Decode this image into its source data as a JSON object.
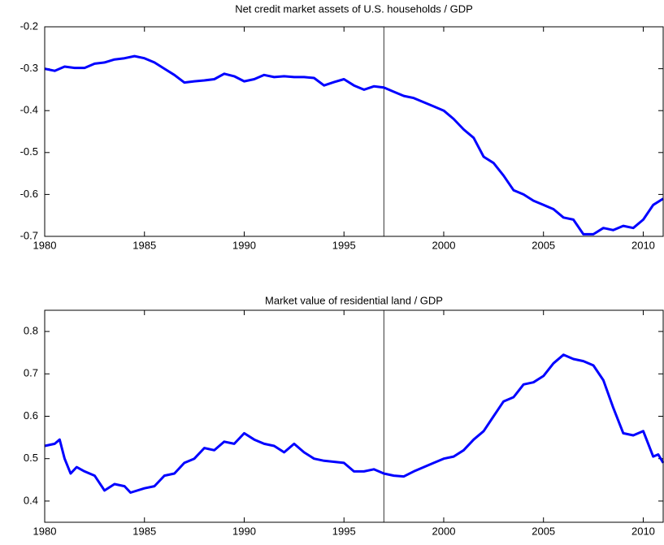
{
  "chart_data": [
    {
      "type": "line",
      "title": "Net credit market assets of U.S. households / GDP",
      "x": [
        1980,
        1980.5,
        1981,
        1981.5,
        1982,
        1982.5,
        1983,
        1983.5,
        1984,
        1984.5,
        1985,
        1985.5,
        1986,
        1986.5,
        1987,
        1987.5,
        1988,
        1988.5,
        1989,
        1989.5,
        1990,
        1990.5,
        1991,
        1991.5,
        1992,
        1992.5,
        1993,
        1993.5,
        1994,
        1994.5,
        1995,
        1995.5,
        1996,
        1996.5,
        1997,
        1997.5,
        1998,
        1998.5,
        1999,
        1999.5,
        2000,
        2000.5,
        2001,
        2001.5,
        2002,
        2002.5,
        2003,
        2003.5,
        2004,
        2004.5,
        2005,
        2005.5,
        2006,
        2006.5,
        2007,
        2007.5,
        2008,
        2008.5,
        2009,
        2009.5,
        2010,
        2010.5,
        2011
      ],
      "series": [
        {
          "name": "Net credit market assets",
          "color": "#0000ff",
          "values": [
            -0.3,
            -0.305,
            -0.295,
            -0.298,
            -0.298,
            -0.288,
            -0.285,
            -0.278,
            -0.275,
            -0.27,
            -0.275,
            -0.285,
            -0.3,
            -0.315,
            -0.333,
            -0.33,
            -0.328,
            -0.325,
            -0.312,
            -0.318,
            -0.33,
            -0.325,
            -0.315,
            -0.32,
            -0.318,
            -0.32,
            -0.32,
            -0.322,
            -0.34,
            -0.332,
            -0.325,
            -0.34,
            -0.35,
            -0.342,
            -0.345,
            -0.355,
            -0.365,
            -0.37,
            -0.38,
            -0.39,
            -0.4,
            -0.42,
            -0.445,
            -0.465,
            -0.51,
            -0.525,
            -0.555,
            -0.59,
            -0.6,
            -0.615,
            -0.625,
            -0.635,
            -0.655,
            -0.66,
            -0.695,
            -0.695,
            -0.68,
            -0.685,
            -0.675,
            -0.68,
            -0.66,
            -0.625,
            -0.61
          ]
        }
      ],
      "xlim": [
        1980,
        2011
      ],
      "xticks": [
        1980,
        1985,
        1990,
        1995,
        2000,
        2005,
        2010
      ],
      "ylim": [
        -0.7,
        -0.2
      ],
      "yticks": [
        -0.7,
        -0.6,
        -0.5,
        -0.4,
        -0.3,
        -0.2
      ],
      "vline": 1997,
      "grid": false
    },
    {
      "type": "line",
      "title": "Market value of residential land / GDP",
      "x": [
        1980,
        1980.5,
        1980.75,
        1981,
        1981.3,
        1981.6,
        1982,
        1982.5,
        1983,
        1983.5,
        1984,
        1984.3,
        1985,
        1985.5,
        1986,
        1986.5,
        1987,
        1987.5,
        1988,
        1988.5,
        1989,
        1989.5,
        1990,
        1990.5,
        1991,
        1991.5,
        1992,
        1992.5,
        1993,
        1993.5,
        1994,
        1995,
        1995.5,
        1996,
        1996.5,
        1997,
        1997.5,
        1998,
        1998.5,
        1999,
        1999.5,
        2000,
        2000.5,
        2001,
        2001.5,
        2002,
        2002.5,
        2003,
        2003.5,
        2004,
        2004.5,
        2005,
        2005.5,
        2006,
        2006.5,
        2007,
        2007.5,
        2008,
        2008.5,
        2009,
        2009.5,
        2010,
        2010.5,
        2010.75,
        2011
      ],
      "series": [
        {
          "name": "Market value of residential land",
          "color": "#0000ff",
          "values": [
            0.53,
            0.535,
            0.545,
            0.5,
            0.465,
            0.48,
            0.47,
            0.46,
            0.425,
            0.44,
            0.435,
            0.42,
            0.43,
            0.435,
            0.46,
            0.465,
            0.49,
            0.5,
            0.525,
            0.52,
            0.54,
            0.535,
            0.56,
            0.545,
            0.535,
            0.53,
            0.515,
            0.535,
            0.515,
            0.5,
            0.495,
            0.49,
            0.47,
            0.47,
            0.475,
            0.465,
            0.46,
            0.458,
            0.47,
            0.48,
            0.49,
            0.5,
            0.505,
            0.52,
            0.545,
            0.565,
            0.6,
            0.635,
            0.645,
            0.675,
            0.68,
            0.695,
            0.725,
            0.745,
            0.735,
            0.73,
            0.72,
            0.685,
            0.62,
            0.56,
            0.555,
            0.565,
            0.505,
            0.51,
            0.49
          ]
        }
      ],
      "xlim": [
        1980,
        2011
      ],
      "xticks": [
        1980,
        1985,
        1990,
        1995,
        2000,
        2005,
        2010
      ],
      "ylim": [
        0.35,
        0.85
      ],
      "yticks": [
        0.4,
        0.5,
        0.6,
        0.7,
        0.8
      ],
      "vline": 1997,
      "grid": false
    }
  ]
}
